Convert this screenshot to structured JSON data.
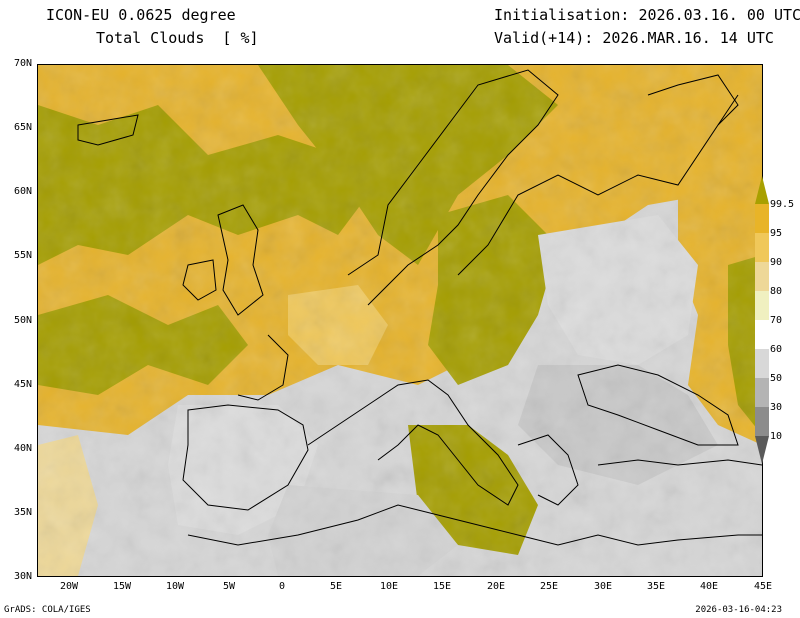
{
  "header": {
    "model_title": "ICON-EU 0.0625 degree",
    "field_title": "Total Clouds  [ %]",
    "initialisation": "Initialisation: 2026.03.16. 00 UTC",
    "valid": "Valid(+14): 2026.MAR.16. 14 UTC"
  },
  "map": {
    "lat_labels": [
      "70N",
      "65N",
      "60N",
      "55N",
      "50N",
      "45N",
      "40N",
      "35N",
      "30N"
    ],
    "lon_labels": [
      "20W",
      "15W",
      "10W",
      "5W",
      "0",
      "5E",
      "10E",
      "15E",
      "20E",
      "25E",
      "30E",
      "35E",
      "40E",
      "45E"
    ]
  },
  "colorbar": {
    "labels": [
      "99.5",
      "95",
      "90",
      "80",
      "70",
      "60",
      "50",
      "30",
      "10"
    ],
    "colors": [
      "#a8a000",
      "#e8b428",
      "#f0c85a",
      "#eed898",
      "#f0f0c0",
      "#ffffff",
      "#d8d8d8",
      "#b4b4b4",
      "#8c8c8c",
      "#5a5a5a"
    ]
  },
  "footer": {
    "left": "GrADS: COLA/IGES",
    "right": "2026-03-16-04:23"
  }
}
